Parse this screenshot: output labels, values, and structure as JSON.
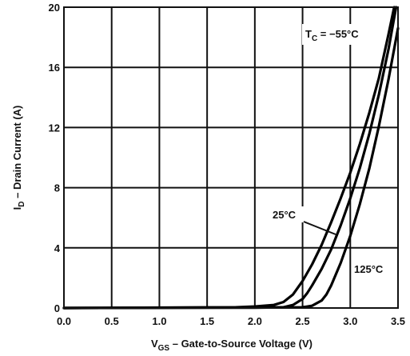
{
  "chart_data": {
    "type": "line",
    "title": "",
    "xlabel": {
      "prefix": "V",
      "sub": "GS",
      "rest": " – Gate-to-Source Voltage (V)"
    },
    "ylabel": {
      "prefix": "I",
      "sub": "D",
      "rest": " – Drain Current (A)"
    },
    "xlim": [
      0,
      3.5
    ],
    "ylim": [
      0,
      20
    ],
    "xticks": [
      "0.0",
      "0.5",
      "1.0",
      "1.5",
      "2.0",
      "2.5",
      "3.0",
      "3.5"
    ],
    "yticks": [
      "0",
      "4",
      "8",
      "12",
      "16",
      "20"
    ],
    "grid": true,
    "series": [
      {
        "name": "−55°C",
        "x": [
          0.0,
          1.8,
          2.0,
          2.2,
          2.3,
          2.4,
          2.5,
          2.6,
          2.7,
          2.8,
          2.9,
          3.0,
          3.1,
          3.2,
          3.3,
          3.4,
          3.46
        ],
        "y": [
          0.0,
          0.05,
          0.1,
          0.2,
          0.4,
          0.9,
          1.8,
          2.9,
          4.2,
          5.7,
          7.3,
          9.0,
          10.9,
          13.0,
          15.3,
          18.2,
          20.0
        ]
      },
      {
        "name": "25°C",
        "x": [
          0.0,
          2.0,
          2.3,
          2.4,
          2.5,
          2.55,
          2.6,
          2.7,
          2.8,
          2.9,
          3.0,
          3.1,
          3.2,
          3.3,
          3.4,
          3.48
        ],
        "y": [
          0.0,
          0.02,
          0.05,
          0.2,
          0.6,
          1.0,
          1.5,
          2.6,
          3.9,
          5.5,
          7.3,
          9.3,
          11.6,
          14.2,
          17.2,
          20.0
        ]
      },
      {
        "name": "125°C",
        "x": [
          0.0,
          2.5,
          2.6,
          2.7,
          2.75,
          2.8,
          2.9,
          3.0,
          3.1,
          3.2,
          3.3,
          3.4,
          3.5
        ],
        "y": [
          0.0,
          0.05,
          0.15,
          0.5,
          0.9,
          1.5,
          3.0,
          4.8,
          6.9,
          9.3,
          12.1,
          15.2,
          18.6
        ]
      }
    ],
    "annotations": {
      "tc": {
        "prefix": "T",
        "sub": "C",
        "rest": " = −55°C"
      },
      "t25": "25°C",
      "t125": "125°C"
    }
  }
}
